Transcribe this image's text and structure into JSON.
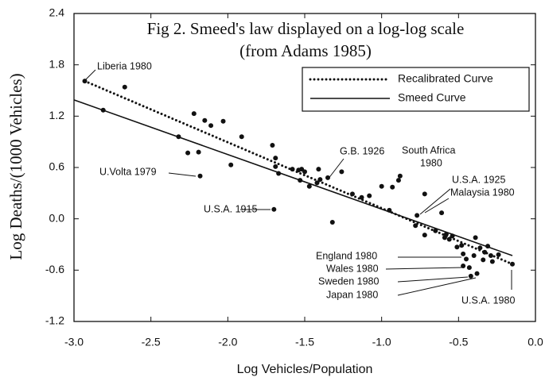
{
  "chart_data": {
    "type": "scatter",
    "title": "Fig 2. Smeed's law displayed on a log-log scale",
    "subtitle": "(from Adams 1985)",
    "xlabel": "Log Vehicles/Population",
    "ylabel": "Log Deaths/(1000 Vehicles)",
    "xlim": [
      -3.0,
      0.0
    ],
    "ylim": [
      -1.2,
      2.4
    ],
    "xticks": [
      {
        "value": -3.0,
        "label": "-3.0"
      },
      -2.5,
      {
        "value": -2.0,
        "label": "-2.0"
      },
      -1.5,
      {
        "value": -1.0,
        "label": "-1.0"
      },
      -0.5,
      {
        "value": 0,
        "label": "0.0"
      }
    ],
    "yticks": [
      2.4,
      1.8,
      1.2,
      0.6,
      {
        "value": 0,
        "label": "0.0"
      },
      -0.6,
      -1.2
    ],
    "color": "#111111",
    "points": {
      "x": [
        -2.93,
        -2.81,
        -2.67,
        -2.32,
        -2.26,
        -2.22,
        -2.19,
        -2.18,
        -2.15,
        -2.11,
        -2.03,
        -1.98,
        -1.91,
        -1.71,
        -1.69,
        -1.69,
        -1.67,
        -1.58,
        -1.54,
        -1.53,
        -1.52,
        -1.5,
        -1.47,
        -1.42,
        -1.41,
        -1.4,
        -1.35,
        -1.26,
        -1.7,
        -1.32,
        -1.19,
        -1.13,
        -1.08,
        -1.0,
        -0.95,
        -0.93,
        -0.89,
        -0.88,
        -0.77,
        -0.72,
        -0.78,
        -0.72,
        -0.65,
        -0.61,
        -0.59,
        -0.58,
        -0.56,
        -0.54,
        -0.51,
        -0.48,
        -0.47,
        -0.47,
        -0.45,
        -0.43,
        -0.42,
        -0.4,
        -0.39,
        -0.38,
        -0.36,
        -0.34,
        -0.33,
        -0.31,
        -0.29,
        -0.28,
        -0.24,
        -0.15
      ],
      "values": [
        1.61,
        1.27,
        1.54,
        0.96,
        0.77,
        1.23,
        0.78,
        0.5,
        1.15,
        1.09,
        1.14,
        0.63,
        0.96,
        0.86,
        0.71,
        0.61,
        0.53,
        0.58,
        0.57,
        0.45,
        0.58,
        0.55,
        0.38,
        0.42,
        0.58,
        0.46,
        0.48,
        0.55,
        0.11,
        -0.04,
        0.29,
        0.25,
        0.27,
        0.38,
        0.1,
        0.37,
        0.45,
        0.5,
        0.04,
        0.29,
        -0.08,
        -0.19,
        -0.14,
        0.07,
        -0.22,
        -0.18,
        -0.24,
        -0.2,
        -0.33,
        -0.31,
        -0.41,
        -0.55,
        -0.47,
        -0.57,
        -0.67,
        -0.43,
        -0.22,
        -0.64,
        -0.34,
        -0.48,
        -0.39,
        -0.32,
        -0.43,
        -0.5,
        -0.42,
        -0.53
      ]
    },
    "series": [
      {
        "name": "Recalibrated Curve",
        "style": "dotted",
        "x": [
          -2.93,
          -0.15
        ],
        "values": [
          1.61,
          -0.53
        ]
      },
      {
        "name": "Smeed Curve",
        "style": "solid",
        "x": [
          -3.0,
          -0.15
        ],
        "values": [
          1.39,
          -0.43
        ]
      }
    ],
    "annotations": [
      "Liberia 1980",
      "U.Volta 1979",
      "U.S.A. 1915",
      "G.B. 1926",
      "South Africa",
      "1980",
      "U.S.A. 1925",
      "Malaysia 1980",
      "England 1980",
      "Wales 1980",
      "Sweden 1980",
      "Japan 1980",
      "U.S.A. 1980"
    ]
  }
}
